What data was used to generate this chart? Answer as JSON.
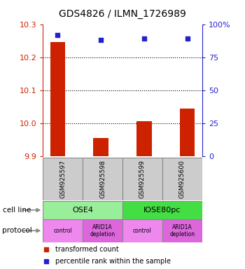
{
  "title": "GDS4826 / ILMN_1726989",
  "samples": [
    "GSM925597",
    "GSM925598",
    "GSM925599",
    "GSM925600"
  ],
  "transformed_counts": [
    10.245,
    9.955,
    10.005,
    10.045
  ],
  "percentile_ranks": [
    92,
    88,
    89,
    89
  ],
  "bar_bottom": 9.9,
  "ylim_left": [
    9.9,
    10.3
  ],
  "ylim_right": [
    0,
    100
  ],
  "yticks_left": [
    9.9,
    10.0,
    10.1,
    10.2,
    10.3
  ],
  "yticks_right": [
    0,
    25,
    50,
    75,
    100
  ],
  "ytick_right_labels": [
    "0",
    "25",
    "50",
    "75",
    "100%"
  ],
  "cell_line_groups": [
    {
      "label": "OSE4",
      "start": 0,
      "end": 2,
      "color": "#99EE99"
    },
    {
      "label": "IOSE80pc",
      "start": 2,
      "end": 4,
      "color": "#44DD44"
    }
  ],
  "protocol_labels": [
    "control",
    "ARID1A\ndepletion",
    "control",
    "ARID1A\ndepletion"
  ],
  "protocol_colors": [
    "#EE88EE",
    "#DD66DD",
    "#EE88EE",
    "#DD66DD"
  ],
  "bar_color": "#CC2200",
  "dot_color": "#2222CC",
  "sample_box_color": "#CCCCCC",
  "legend_bar_label": "transformed count",
  "legend_dot_label": "percentile rank within the sample",
  "fig_width": 3.5,
  "fig_height": 3.84
}
